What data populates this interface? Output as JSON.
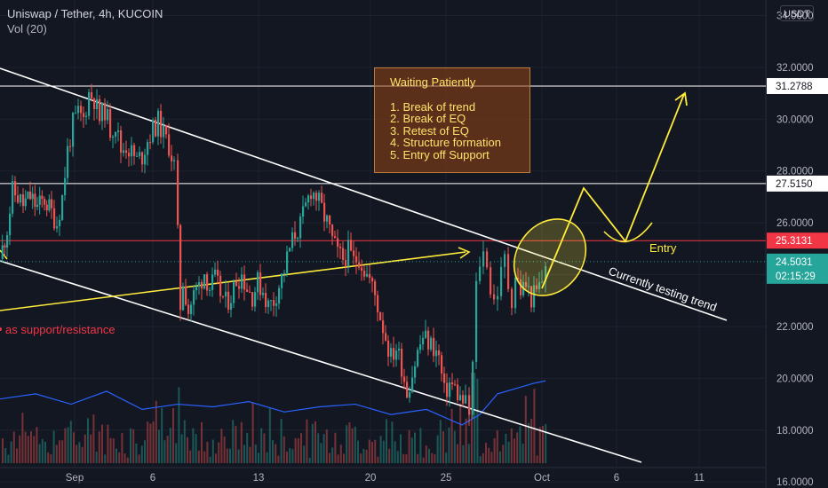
{
  "header": {
    "symbol_line": "Uniswap / Tether, 4h, KUCOIN",
    "volume_line": "Vol (20)",
    "currency_button": "USDT"
  },
  "note": {
    "title": "Waiting Patiently",
    "items": [
      "1. Break of trend",
      "2. Break of EQ",
      "3. Retest of EQ",
      "4. Structure formation",
      "5. Entry off Support"
    ]
  },
  "annotations": {
    "entry": "Entry",
    "testing": "Currently testing trend",
    "sr_text": "as support/resistance"
  },
  "colors": {
    "background": "#131722",
    "up": "#26a69a",
    "down": "#ef5350",
    "annotation": "#ffeb3b",
    "sr_line": "#f23645",
    "last_price": "#26a69a"
  },
  "chart_data": {
    "type": "candlestick",
    "ylim": [
      15.8,
      34.6
    ],
    "x_ticks": [
      "Sep",
      "6",
      "13",
      "20",
      "25",
      "Oct",
      "6",
      "11"
    ],
    "y_ticks": [
      "16.0000",
      "18.0000",
      "20.0000",
      "22.0000",
      "24.0000",
      "26.0000",
      "28.0000",
      "30.0000",
      "32.0000",
      "34.0000"
    ],
    "levels": [
      {
        "label": "31.2788",
        "value": 31.2788,
        "style": "white"
      },
      {
        "label": "27.5150",
        "value": 27.515,
        "style": "white"
      },
      {
        "label": "25.3131",
        "value": 25.3131,
        "style": "red"
      }
    ],
    "last_price": {
      "value": 24.5031,
      "label": "24.5031",
      "countdown": "02:15:29"
    },
    "price_path": [
      [
        0,
        24.6
      ],
      [
        8,
        25.8
      ],
      [
        14,
        27.2
      ],
      [
        20,
        27.0
      ],
      [
        26,
        26.7
      ],
      [
        34,
        27.0
      ],
      [
        42,
        26.6
      ],
      [
        50,
        26.9
      ],
      [
        58,
        26.4
      ],
      [
        64,
        26.0
      ],
      [
        70,
        27.0
      ],
      [
        76,
        28.8
      ],
      [
        82,
        29.8
      ],
      [
        88,
        30.2
      ],
      [
        94,
        30.0
      ],
      [
        100,
        31.0
      ],
      [
        106,
        30.8
      ],
      [
        112,
        30.0
      ],
      [
        118,
        30.4
      ],
      [
        124,
        29.6
      ],
      [
        130,
        29.8
      ],
      [
        136,
        28.8
      ],
      [
        142,
        29.0
      ],
      [
        148,
        28.7
      ],
      [
        154,
        28.4
      ],
      [
        160,
        28.6
      ],
      [
        166,
        29.2
      ],
      [
        172,
        29.6
      ],
      [
        178,
        29.9
      ],
      [
        184,
        29.4
      ],
      [
        190,
        29.0
      ],
      [
        196,
        28.2
      ],
      [
        200,
        25.5
      ],
      [
        203,
        22.8
      ],
      [
        206,
        23.8
      ],
      [
        212,
        22.6
      ],
      [
        218,
        23.2
      ],
      [
        224,
        23.6
      ],
      [
        230,
        24.1
      ],
      [
        236,
        23.5
      ],
      [
        242,
        23.8
      ],
      [
        248,
        23.3
      ],
      [
        254,
        22.9
      ],
      [
        260,
        23.2
      ],
      [
        266,
        23.8
      ],
      [
        272,
        24.0
      ],
      [
        278,
        23.5
      ],
      [
        284,
        23.2
      ],
      [
        290,
        23.7
      ],
      [
        296,
        23.4
      ],
      [
        302,
        22.8
      ],
      [
        308,
        23.0
      ],
      [
        314,
        23.6
      ],
      [
        320,
        24.2
      ],
      [
        326,
        25.0
      ],
      [
        332,
        25.6
      ],
      [
        338,
        25.9
      ],
      [
        344,
        26.6
      ],
      [
        350,
        27.3
      ],
      [
        356,
        27.0
      ],
      [
        362,
        26.5
      ],
      [
        368,
        26.0
      ],
      [
        374,
        25.3
      ],
      [
        380,
        24.8
      ],
      [
        386,
        24.6
      ],
      [
        392,
        24.9
      ],
      [
        398,
        24.5
      ],
      [
        404,
        24.7
      ],
      [
        410,
        24.2
      ],
      [
        416,
        23.8
      ],
      [
        422,
        23.2
      ],
      [
        428,
        22.4
      ],
      [
        434,
        21.6
      ],
      [
        440,
        20.8
      ],
      [
        446,
        21.2
      ],
      [
        452,
        20.5
      ],
      [
        458,
        19.5
      ],
      [
        464,
        20.2
      ],
      [
        470,
        21.0
      ],
      [
        476,
        21.6
      ],
      [
        482,
        21.4
      ],
      [
        488,
        21.2
      ],
      [
        494,
        20.8
      ],
      [
        500,
        19.4
      ],
      [
        506,
        19.8
      ],
      [
        512,
        19.6
      ],
      [
        518,
        19.2
      ],
      [
        524,
        19.0
      ],
      [
        528,
        18.6
      ],
      [
        532,
        20.5
      ],
      [
        536,
        23.5
      ],
      [
        540,
        24.5
      ],
      [
        544,
        24.8
      ],
      [
        548,
        24.6
      ],
      [
        552,
        23.4
      ],
      [
        556,
        23.0
      ],
      [
        560,
        23.4
      ],
      [
        564,
        24.0
      ],
      [
        568,
        24.6
      ],
      [
        572,
        23.6
      ],
      [
        576,
        23.1
      ],
      [
        580,
        24.0
      ],
      [
        586,
        23.4
      ],
      [
        592,
        23.6
      ],
      [
        598,
        23.1
      ],
      [
        604,
        23.3
      ],
      [
        610,
        23.8
      ],
      [
        614,
        24.5
      ]
    ],
    "volume_ma": [
      [
        0,
        19.2
      ],
      [
        40,
        19.4
      ],
      [
        80,
        19.0
      ],
      [
        120,
        19.5
      ],
      [
        160,
        18.8
      ],
      [
        200,
        19.0
      ],
      [
        240,
        18.9
      ],
      [
        280,
        19.1
      ],
      [
        320,
        18.7
      ],
      [
        360,
        18.9
      ],
      [
        400,
        19.0
      ],
      [
        440,
        18.6
      ],
      [
        480,
        18.8
      ],
      [
        520,
        18.2
      ],
      [
        540,
        18.6
      ],
      [
        560,
        19.4
      ],
      [
        580,
        19.6
      ],
      [
        600,
        19.8
      ],
      [
        614,
        19.9
      ]
    ]
  }
}
